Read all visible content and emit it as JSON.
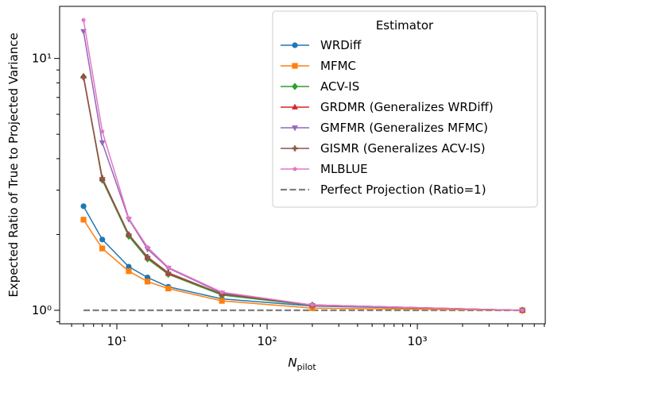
{
  "chart_data": {
    "type": "line",
    "xscale": "log",
    "yscale": "log",
    "xlabel": [
      "N",
      "pilot"
    ],
    "ylabel": "Expected Ratio of True to Projected Variance",
    "x": [
      6,
      8,
      12,
      16,
      22,
      50,
      200,
      5000
    ],
    "series": [
      {
        "name": "WRDiff",
        "color": "#1f77b4",
        "marker": "circle",
        "values": [
          2.59,
          1.91,
          1.49,
          1.35,
          1.24,
          1.11,
          1.04,
          1.0
        ]
      },
      {
        "name": "MFMC",
        "color": "#ff7f0e",
        "marker": "square",
        "values": [
          2.29,
          1.76,
          1.43,
          1.3,
          1.22,
          1.09,
          1.02,
          1.0
        ]
      },
      {
        "name": "ACV-IS",
        "color": "#2ca02c",
        "marker": "diamond",
        "values": [
          8.46,
          3.29,
          1.97,
          1.6,
          1.39,
          1.15,
          1.045,
          1.0
        ]
      },
      {
        "name": "GRDMR (Generalizes WRDiff)",
        "color": "#d62728",
        "marker": "triangle-up",
        "values": [
          8.5,
          3.33,
          2.0,
          1.62,
          1.4,
          1.16,
          1.05,
          1.0
        ]
      },
      {
        "name": "GMFMR (Generalizes MFMC)",
        "color": "#9467bd",
        "marker": "triangle-down",
        "values": [
          12.8,
          4.63,
          2.3,
          1.75,
          1.47,
          1.17,
          1.045,
          1.0
        ]
      },
      {
        "name": "GISMR (Generalizes ACV-IS)",
        "color": "#8c564b",
        "marker": "plus",
        "values": [
          8.4,
          3.35,
          2.0,
          1.63,
          1.41,
          1.16,
          1.05,
          1.0
        ]
      },
      {
        "name": "MLBLUE",
        "color": "#e377c2",
        "marker": "pentagon",
        "values": [
          14.2,
          5.13,
          2.32,
          1.78,
          1.48,
          1.18,
          1.05,
          1.0
        ]
      }
    ],
    "reference_line": {
      "name": "Perfect Projection (Ratio=1)",
      "value": 1,
      "color": "#7f7f7f"
    },
    "legend_title": "Estimator",
    "legend": "upper right",
    "xlim": [
      4.16,
      7100
    ],
    "ylim": [
      0.884,
      16.1
    ],
    "xticks": [
      {
        "value": 10,
        "label": "10¹"
      },
      {
        "value": 100,
        "label": "10²"
      },
      {
        "value": 1000,
        "label": "10³"
      }
    ],
    "yticks": [
      {
        "value": 1,
        "label": "10⁰"
      },
      {
        "value": 10,
        "label": "10¹"
      }
    ],
    "xticks_minor": [
      5,
      6,
      7,
      8,
      9,
      20,
      30,
      40,
      50,
      60,
      70,
      80,
      90,
      200,
      300,
      400,
      500,
      600,
      700,
      800,
      900,
      2000,
      3000,
      4000,
      5000,
      6000,
      7000
    ],
    "yticks_minor": [
      0.9,
      2,
      3,
      4,
      5,
      6,
      7,
      8,
      9
    ]
  }
}
